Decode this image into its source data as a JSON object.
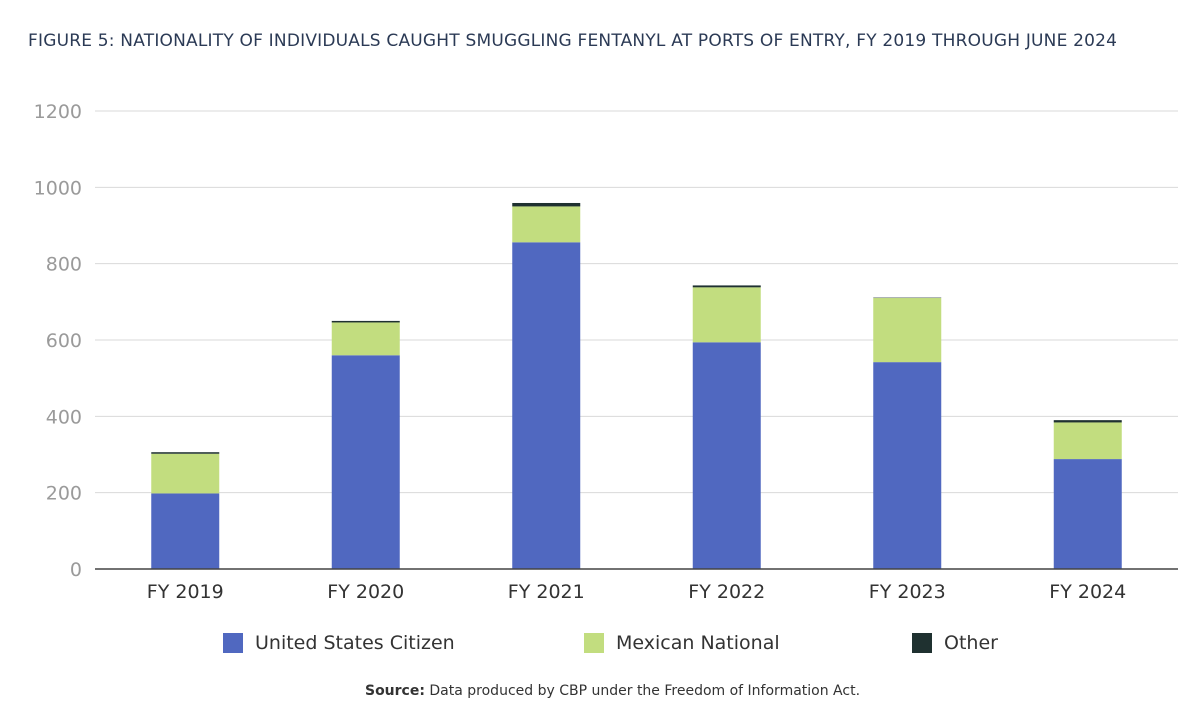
{
  "title": "FIGURE 5: NATIONALITY OF INDIVIDUALS CAUGHT SMUGGLING FENTANYL AT PORTS OF ENTRY, FY 2019 THROUGH JUNE 2024",
  "colors": {
    "us_citizen": "#5068c0",
    "mexican_national": "#c2dd7f",
    "other": "#1f3130",
    "grid": "#d9d9d9",
    "axis": "#444444",
    "tick_label_y": "#9a9a9a",
    "tick_label_x": "#333333"
  },
  "chart_data": {
    "type": "bar",
    "stacked": true,
    "categories": [
      "FY 2019",
      "FY 2020",
      "FY 2021",
      "FY 2022",
      "FY 2023",
      "FY 2024"
    ],
    "series": [
      {
        "name": "United States Citizen",
        "color": "#5068c0",
        "values": [
          198,
          560,
          856,
          594,
          542,
          288
        ]
      },
      {
        "name": "Mexican National",
        "color": "#c2dd7f",
        "values": [
          104,
          86,
          94,
          144,
          168,
          96
        ]
      },
      {
        "name": "Other",
        "color": "#1f3130",
        "values": [
          4,
          4,
          9,
          5,
          1,
          6
        ]
      }
    ],
    "ylim": [
      0,
      1200
    ],
    "yticks": [
      0,
      200,
      400,
      600,
      800,
      1000,
      1200
    ],
    "grid": true,
    "legend_position": "bottom"
  },
  "legend": [
    {
      "label": "United States Citizen",
      "color": "#5068c0"
    },
    {
      "label": "Mexican National",
      "color": "#c2dd7f"
    },
    {
      "label": "Other",
      "color": "#1f3130"
    }
  ],
  "source": {
    "label": "Source:",
    "text": "Data produced by CBP under the Freedom of Information Act."
  }
}
